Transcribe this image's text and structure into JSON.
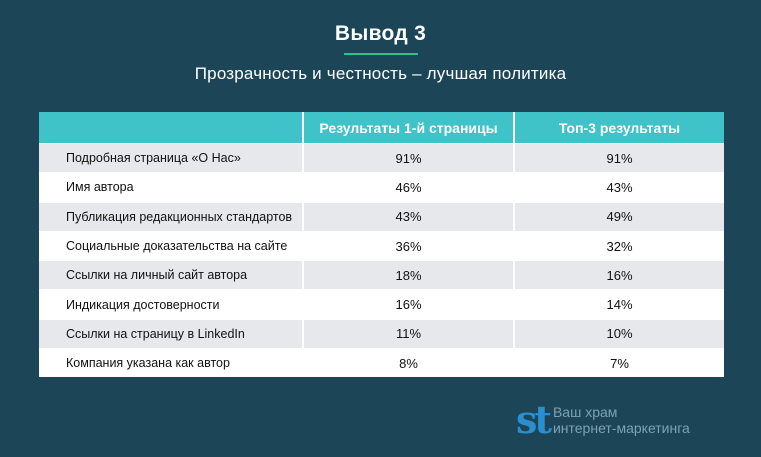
{
  "header": {
    "title": "Вывод 3",
    "subtitle": "Прозрачность и честность – лучшая политика"
  },
  "table": {
    "columns": [
      "",
      "Результаты 1-й страницы",
      "Топ-3 результаты"
    ],
    "rows": [
      {
        "label": "Подробная страница «О Нас»",
        "page1": "91%",
        "top3": "91%"
      },
      {
        "label": "Имя автора",
        "page1": "46%",
        "top3": "43%"
      },
      {
        "label": "Публикация редакционных стандартов",
        "page1": "43%",
        "top3": "49%"
      },
      {
        "label": "Социальные доказательства на сайте",
        "page1": "36%",
        "top3": "32%"
      },
      {
        "label": "Ссылки на личный сайт автора",
        "page1": "18%",
        "top3": "16%"
      },
      {
        "label": "Индикация достоверности",
        "page1": "16%",
        "top3": "14%"
      },
      {
        "label": "Ссылки на страницу в LinkedIn",
        "page1": "11%",
        "top3": "10%"
      },
      {
        "label": "Компания указана как автор",
        "page1": "8%",
        "top3": "7%"
      }
    ]
  },
  "brand": {
    "logo": "st",
    "line1": "Ваш храм",
    "line2": "интернет-маркетинга"
  }
}
